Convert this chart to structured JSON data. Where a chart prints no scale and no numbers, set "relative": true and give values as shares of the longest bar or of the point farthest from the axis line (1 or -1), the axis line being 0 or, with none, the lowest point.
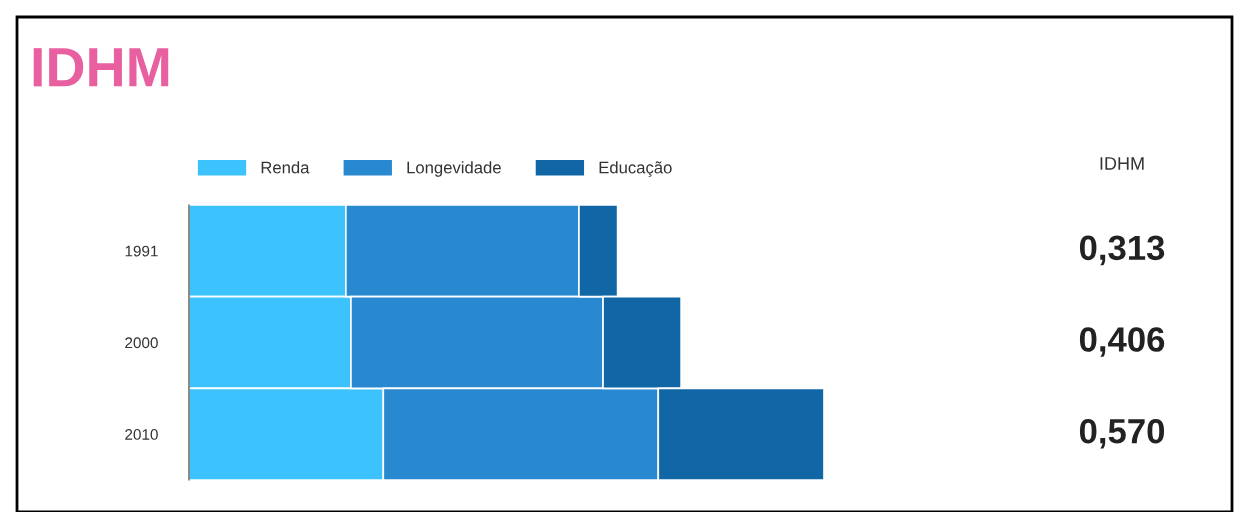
{
  "chart_data": {
    "type": "bar",
    "title": "IDHM",
    "orientation": "horizontal",
    "stacked": true,
    "relative": true,
    "categories": [
      "1991",
      "2000",
      "2010"
    ],
    "series": [
      {
        "name": "Renda",
        "color": "#3cc3fd",
        "values": [
          0.247,
          0.255,
          0.306
        ]
      },
      {
        "name": "Longevidade",
        "color": "#2889d0",
        "values": [
          0.367,
          0.397,
          0.433
        ]
      },
      {
        "name": "Educação",
        "color": "#1166a6",
        "values": [
          0.061,
          0.123,
          0.261
        ]
      }
    ],
    "annotations": [
      "IDHM",
      "0,313",
      "0,406",
      "0,570"
    ],
    "legend": "top left",
    "grid": false
  }
}
